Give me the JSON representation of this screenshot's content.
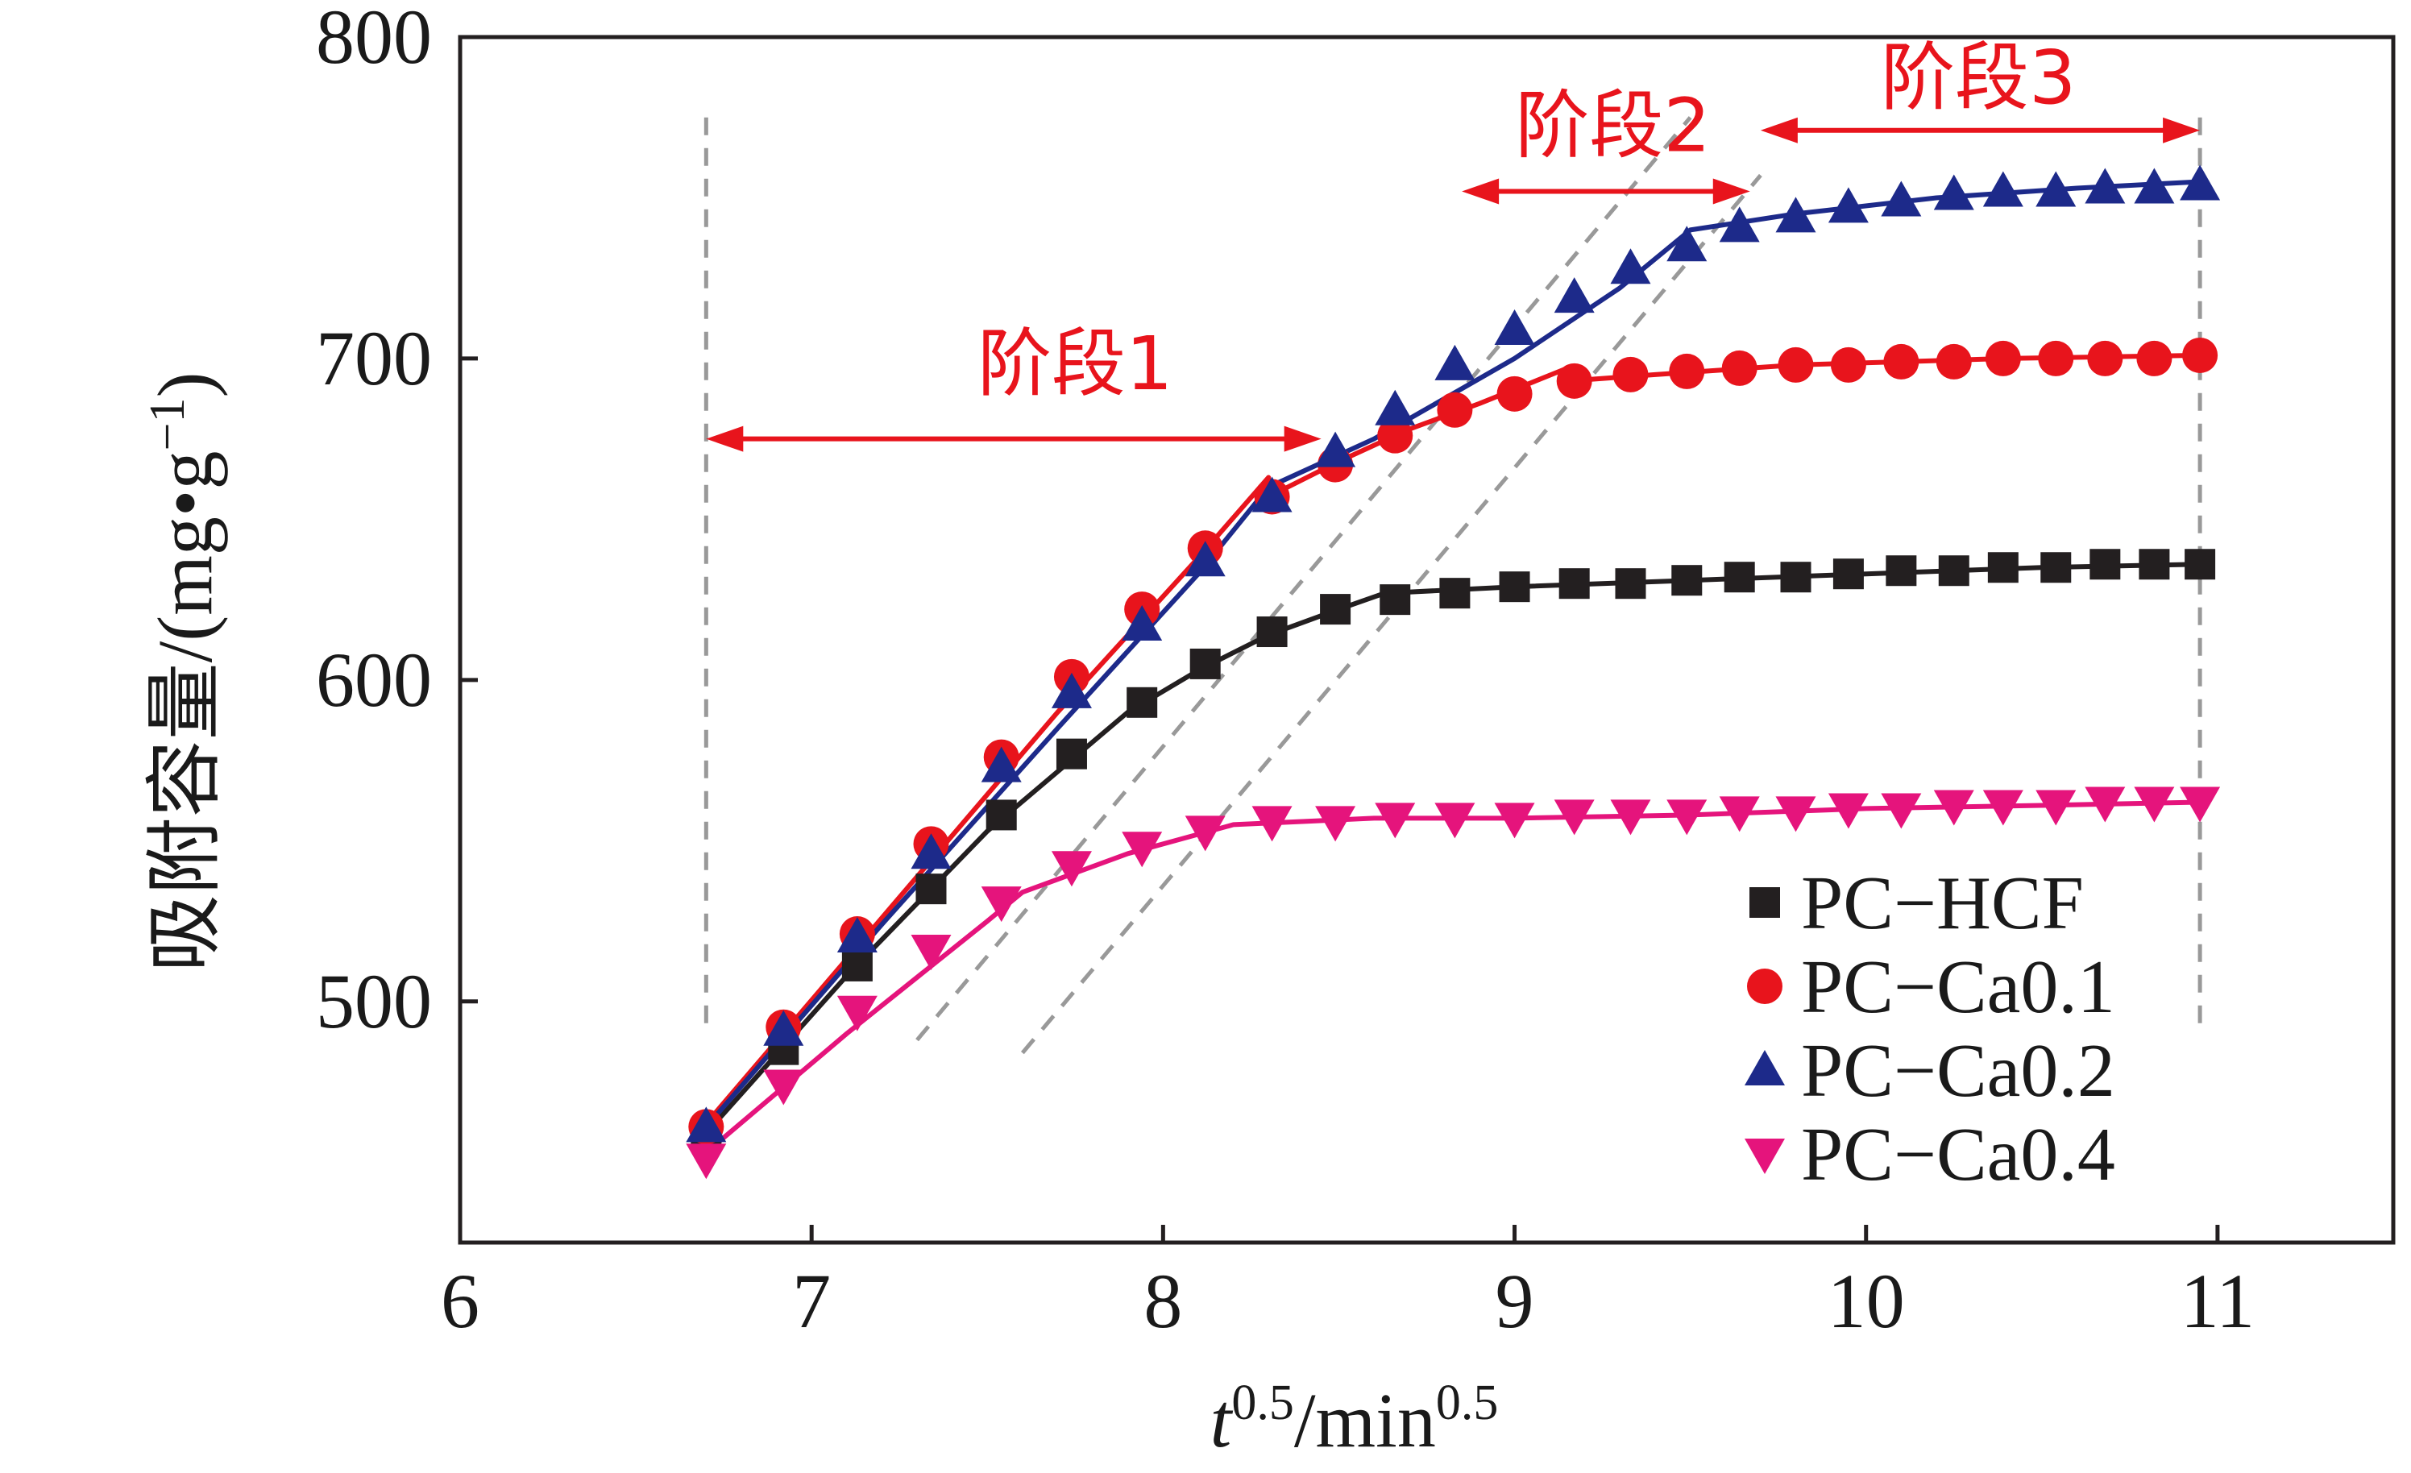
{
  "chart_data": {
    "type": "line",
    "x_axis": {
      "label_main": "t",
      "label_sup": "0.5",
      "label_rest": "/min",
      "label_rest_sup": "0.5",
      "range": [
        6,
        11.5
      ],
      "ticks": [
        6,
        7,
        8,
        9,
        10,
        11
      ],
      "tick_labels": [
        "6",
        "7",
        "8",
        "9",
        "10",
        "11"
      ]
    },
    "y_axis": {
      "label_main": "吸附容量/(mg•g",
      "label_sup": "−1",
      "label_end": ")",
      "range": [
        425,
        800
      ],
      "ticks": [
        500,
        600,
        700,
        800
      ],
      "tick_labels": [
        "500",
        "600",
        "700",
        "800"
      ]
    },
    "grid": false,
    "legend_position": "bottom-right",
    "x": [
      6.7,
      6.92,
      7.13,
      7.34,
      7.54,
      7.74,
      7.94,
      8.12,
      8.31,
      8.49,
      8.66,
      8.83,
      9.0,
      9.17,
      9.33,
      9.49,
      9.64,
      9.8,
      9.95,
      10.1,
      10.25,
      10.39,
      10.54,
      10.68,
      10.82,
      10.95
    ],
    "series": [
      {
        "name": "PC−HCF",
        "color": "#231f20",
        "marker": "square",
        "values": [
          458,
          485,
          511,
          535,
          558,
          577,
          593,
          605,
          615,
          622,
          625,
          627,
          629,
          630,
          630,
          631,
          632,
          632,
          633,
          634,
          634,
          635,
          635,
          636,
          636,
          636
        ],
        "fit": [
          [
            6.7,
            459
          ],
          [
            7.1,
            508
          ],
          [
            7.5,
            553
          ],
          [
            7.9,
            590
          ],
          [
            8.1,
            603
          ],
          [
            8.3,
            614
          ],
          [
            8.5,
            622
          ],
          [
            8.63,
            627
          ],
          [
            9.0,
            629
          ],
          [
            9.5,
            631
          ],
          [
            10.0,
            633
          ],
          [
            10.5,
            635
          ],
          [
            10.95,
            636
          ]
        ]
      },
      {
        "name": "PC−Ca0.1",
        "color": "#e8141c",
        "marker": "circle",
        "values": [
          461,
          492,
          521,
          549,
          576,
          601,
          622,
          641,
          657,
          667,
          676,
          684,
          689,
          693,
          695,
          696,
          697,
          698,
          698,
          699,
          699,
          700,
          700,
          700,
          700,
          701
        ],
        "fit": [
          [
            6.7,
            462
          ],
          [
            7.2,
            526
          ],
          [
            7.7,
            590
          ],
          [
            8.1,
            638
          ],
          [
            8.3,
            663
          ],
          [
            8.3,
            657
          ],
          [
            8.5,
            668
          ],
          [
            8.7,
            678
          ],
          [
            8.9,
            686
          ],
          [
            9.15,
            697
          ],
          [
            9.15,
            693
          ],
          [
            9.4,
            695
          ],
          [
            9.8,
            698
          ],
          [
            10.4,
            700
          ],
          [
            10.95,
            701
          ]
        ]
      },
      {
        "name": "PC−Ca0.2",
        "color": "#1d2a8a",
        "marker": "triangle-up",
        "values": [
          461,
          491,
          520,
          546,
          573,
          596,
          617,
          637,
          657,
          671,
          684,
          698,
          709,
          719,
          728,
          735,
          741,
          744,
          747,
          749,
          751,
          752,
          752,
          753,
          753,
          754
        ],
        "fit": [
          [
            6.7,
            461
          ],
          [
            7.2,
            524
          ],
          [
            7.7,
            585
          ],
          [
            8.1,
            633
          ],
          [
            8.3,
            660
          ],
          [
            8.6,
            675
          ],
          [
            9.0,
            700
          ],
          [
            9.3,
            722
          ],
          [
            9.5,
            740
          ],
          [
            9.8,
            745
          ],
          [
            10.2,
            750
          ],
          [
            10.6,
            753
          ],
          [
            10.95,
            755
          ]
        ]
      },
      {
        "name": "PC−Ca0.4",
        "color": "#e5147c",
        "marker": "triangle-down",
        "values": [
          451,
          474,
          497,
          516,
          531,
          542,
          548,
          553,
          556,
          556,
          557,
          557,
          557,
          558,
          558,
          558,
          559,
          559,
          560,
          560,
          561,
          561,
          561,
          562,
          562,
          562
        ],
        "fit": [
          [
            6.7,
            453
          ],
          [
            7.1,
            490
          ],
          [
            7.5,
            525
          ],
          [
            7.6,
            534
          ],
          [
            7.9,
            546
          ],
          [
            8.2,
            555
          ],
          [
            8.6,
            557
          ],
          [
            9.0,
            557
          ],
          [
            9.5,
            558
          ],
          [
            10.0,
            560
          ],
          [
            10.5,
            561
          ],
          [
            10.95,
            562
          ]
        ]
      }
    ],
    "guides": {
      "vertical_lines": [
        6.7,
        10.95
      ],
      "dashed_lines": [
        [
          [
            7.3,
            488
          ],
          [
            9.5,
            775
          ]
        ],
        [
          [
            7.6,
            484
          ],
          [
            9.7,
            757
          ]
        ]
      ]
    },
    "annotations": [
      {
        "text": "阶段1",
        "arrow": [
          6.7,
          8.45
        ],
        "arrow_y": 675,
        "label_x": 7.75,
        "label_y": 698
      },
      {
        "text": "阶段2",
        "arrow": [
          8.85,
          9.67
        ],
        "arrow_y": 752,
        "label_x": 9.28,
        "label_y": 772
      },
      {
        "text": "阶段3",
        "arrow": [
          9.7,
          10.95
        ],
        "arrow_y": 771,
        "label_x": 10.32,
        "label_y": 787
      }
    ],
    "arrow_color": "#e8141c",
    "frame_color": "#231f20",
    "guide_color": "#999999"
  }
}
